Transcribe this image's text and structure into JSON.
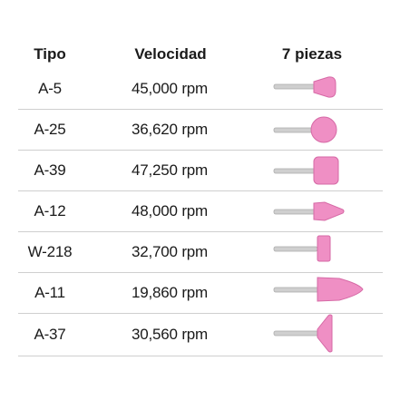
{
  "header": {
    "tipo": "Tipo",
    "velocidad": "Velocidad",
    "piezas": "7 piezas"
  },
  "rows": [
    {
      "tipo": "A-5",
      "velocidad": "45,000 rpm",
      "icon": "cone-stone-icon"
    },
    {
      "tipo": "A-25",
      "velocidad": "36,620 rpm",
      "icon": "ball-stone-icon"
    },
    {
      "tipo": "A-39",
      "velocidad": "47,250 rpm",
      "icon": "cylinder-stone-icon"
    },
    {
      "tipo": "A-12",
      "velocidad": "48,000 rpm",
      "icon": "pointed-stone-icon"
    },
    {
      "tipo": "W-218",
      "velocidad": "32,700 rpm",
      "icon": "small-cylinder-stone-icon"
    },
    {
      "tipo": "A-11",
      "velocidad": "19,860 rpm",
      "icon": "bullet-stone-icon"
    },
    {
      "tipo": "A-37",
      "velocidad": "30,560 rpm",
      "icon": "inverted-cone-stone-icon"
    }
  ],
  "colors": {
    "stone": "#ef8fc4",
    "stone_dark": "#d66aa6",
    "shank": "#c8c8c8",
    "divider": "#cfcfcf"
  }
}
